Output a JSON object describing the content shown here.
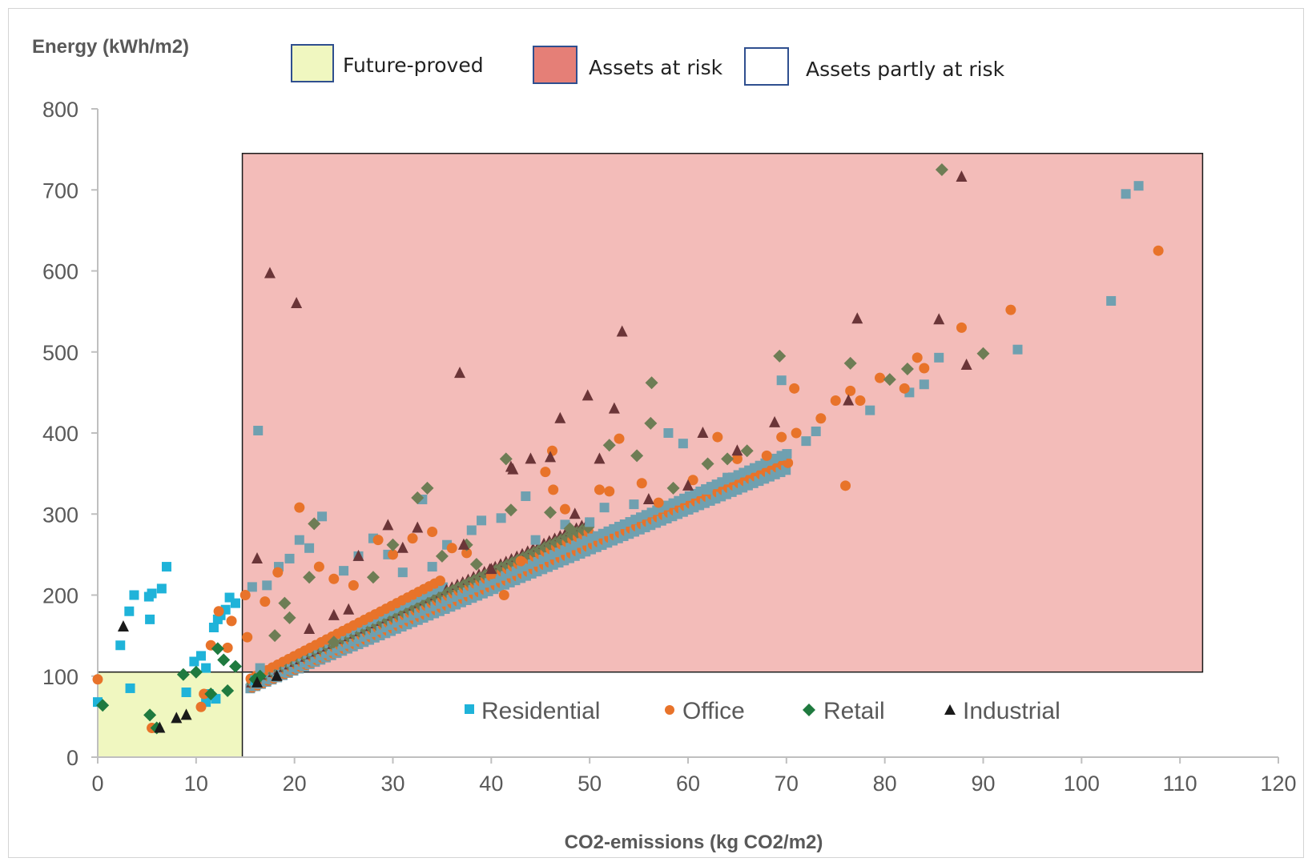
{
  "chart_data": {
    "type": "scatter",
    "title": "",
    "xlabel": "CO2-emissions (kg CO2/m2)",
    "ylabel": "Energy (kWh/m2)",
    "xlim": [
      0,
      120
    ],
    "ylim": [
      0,
      800
    ],
    "x_ticks": [
      "0",
      "10",
      "20",
      "30",
      "40",
      "50",
      "60",
      "70",
      "80",
      "90",
      "100",
      "110",
      "120"
    ],
    "y_ticks": [
      "0",
      "100",
      "200",
      "300",
      "400",
      "500",
      "600",
      "700",
      "800"
    ],
    "grid": false,
    "legend_position": "bottom-center inside plot",
    "zones": [
      {
        "name": "Future-proved",
        "color": "#f0f7c0",
        "x": [
          0,
          14.7
        ],
        "y": [
          0,
          105
        ]
      },
      {
        "name": "Assets at risk",
        "color": "#e57f77",
        "fill": "#f3bcb9",
        "x": [
          14.7,
          112.3
        ],
        "y": [
          105,
          745
        ]
      },
      {
        "name": "Assets partly at risk",
        "color": "#ffffff"
      }
    ],
    "series": [
      {
        "name": "Residential",
        "marker": "square",
        "color": "#1fb3d9",
        "overlap_color": "#6fa0b0",
        "points": [
          [
            0,
            68
          ],
          [
            2.3,
            138
          ],
          [
            3.2,
            180
          ],
          [
            3.7,
            200
          ],
          [
            5.2,
            198
          ],
          [
            5.5,
            202
          ],
          [
            5.3,
            170
          ],
          [
            6.5,
            208
          ],
          [
            7,
            235
          ],
          [
            3.3,
            85
          ],
          [
            9,
            80
          ],
          [
            9.8,
            118
          ],
          [
            10.5,
            125
          ],
          [
            11,
            110
          ],
          [
            11.3,
            78
          ],
          [
            11.8,
            160
          ],
          [
            12.2,
            170
          ],
          [
            12.5,
            175
          ],
          [
            13,
            182
          ],
          [
            13.4,
            197
          ],
          [
            14,
            190
          ],
          [
            11,
            68
          ],
          [
            12,
            72
          ],
          [
            16,
            95
          ],
          [
            16.5,
            110
          ],
          [
            16.3,
            403
          ],
          [
            15.7,
            210
          ],
          [
            17.2,
            212
          ],
          [
            18.4,
            235
          ],
          [
            19.5,
            245
          ],
          [
            20.5,
            268
          ],
          [
            21.5,
            258
          ],
          [
            22.8,
            297
          ],
          [
            25,
            230
          ],
          [
            26.5,
            248
          ],
          [
            28,
            270
          ],
          [
            29.5,
            250
          ],
          [
            31,
            228
          ],
          [
            33,
            318
          ],
          [
            34,
            235
          ],
          [
            35.5,
            262
          ],
          [
            38,
            280
          ],
          [
            39,
            292
          ],
          [
            41,
            295
          ],
          [
            43.5,
            322
          ],
          [
            44.5,
            268
          ],
          [
            47.5,
            287
          ],
          [
            50,
            290
          ],
          [
            51.5,
            308
          ],
          [
            54.5,
            312
          ],
          [
            58,
            400
          ],
          [
            59.5,
            387
          ],
          [
            62,
            330
          ],
          [
            64,
            345
          ],
          [
            69.5,
            465
          ],
          [
            69.5,
            372
          ],
          [
            72,
            390
          ],
          [
            73,
            402
          ],
          [
            78.5,
            428
          ],
          [
            82.5,
            450
          ],
          [
            84,
            460
          ],
          [
            85.5,
            493
          ],
          [
            93.5,
            503
          ],
          [
            103,
            563
          ],
          [
            104.5,
            695
          ],
          [
            105.8,
            705
          ]
        ]
      },
      {
        "name": "Office",
        "marker": "circle",
        "color": "#e8732a",
        "points": [
          [
            0,
            96
          ],
          [
            5.5,
            36
          ],
          [
            10.5,
            62
          ],
          [
            10.8,
            78
          ],
          [
            11.5,
            138
          ],
          [
            12.3,
            180
          ],
          [
            13.2,
            135
          ],
          [
            13.6,
            168
          ],
          [
            15,
            200
          ],
          [
            15.2,
            148
          ],
          [
            17,
            192
          ],
          [
            18.3,
            228
          ],
          [
            20.5,
            308
          ],
          [
            22.5,
            235
          ],
          [
            24,
            220
          ],
          [
            26,
            212
          ],
          [
            28.5,
            268
          ],
          [
            30,
            250
          ],
          [
            32,
            270
          ],
          [
            34,
            278
          ],
          [
            36,
            258
          ],
          [
            37.5,
            252
          ],
          [
            40,
            226
          ],
          [
            41.3,
            200
          ],
          [
            43,
            242
          ],
          [
            46.2,
            378
          ],
          [
            45.5,
            352
          ],
          [
            46.3,
            330
          ],
          [
            47.5,
            306
          ],
          [
            51,
            330
          ],
          [
            52,
            328
          ],
          [
            53,
            393
          ],
          [
            55.3,
            338
          ],
          [
            57,
            314
          ],
          [
            60.5,
            342
          ],
          [
            63,
            395
          ],
          [
            65,
            368
          ],
          [
            68,
            372
          ],
          [
            69.5,
            395
          ],
          [
            71,
            400
          ],
          [
            70.8,
            455
          ],
          [
            73.5,
            418
          ],
          [
            75,
            440
          ],
          [
            76.5,
            452
          ],
          [
            77.5,
            440
          ],
          [
            76,
            335
          ],
          [
            79.5,
            468
          ],
          [
            82,
            455
          ],
          [
            83.3,
            493
          ],
          [
            84,
            480
          ],
          [
            87.8,
            530
          ],
          [
            92.8,
            552
          ],
          [
            107.8,
            625
          ]
        ]
      },
      {
        "name": "Retail",
        "marker": "diamond",
        "color": "#1f7a3f",
        "overlap_color": "#6e7d55",
        "points": [
          [
            0.5,
            64
          ],
          [
            5.3,
            52
          ],
          [
            6,
            36
          ],
          [
            8.7,
            102
          ],
          [
            10,
            105
          ],
          [
            11.5,
            78
          ],
          [
            12.2,
            134
          ],
          [
            12.8,
            120
          ],
          [
            13.2,
            82
          ],
          [
            14,
            112
          ],
          [
            16,
            96
          ],
          [
            16.5,
            100
          ],
          [
            18,
            150
          ],
          [
            19,
            190
          ],
          [
            19.5,
            172
          ],
          [
            21.5,
            222
          ],
          [
            22,
            288
          ],
          [
            24,
            142
          ],
          [
            28,
            222
          ],
          [
            30,
            262
          ],
          [
            32.5,
            320
          ],
          [
            33.5,
            332
          ],
          [
            35,
            248
          ],
          [
            37.5,
            262
          ],
          [
            38.5,
            238
          ],
          [
            41.5,
            368
          ],
          [
            42,
            305
          ],
          [
            46,
            302
          ],
          [
            48,
            282
          ],
          [
            52,
            385
          ],
          [
            54.8,
            372
          ],
          [
            56.2,
            412
          ],
          [
            56.3,
            462
          ],
          [
            58.5,
            332
          ],
          [
            62,
            362
          ],
          [
            64,
            368
          ],
          [
            66,
            378
          ],
          [
            69.3,
            495
          ],
          [
            76.5,
            486
          ],
          [
            80.5,
            466
          ],
          [
            82.3,
            479
          ],
          [
            85.8,
            725
          ],
          [
            90,
            498
          ]
        ]
      },
      {
        "name": "Industrial",
        "marker": "triangle",
        "color": "#1a1a1a",
        "overlap_color": "#6b3538",
        "points": [
          [
            2.6,
            161
          ],
          [
            6.3,
            36
          ],
          [
            8,
            48
          ],
          [
            9,
            52
          ],
          [
            16.2,
            92
          ],
          [
            18.2,
            100
          ],
          [
            16.2,
            245
          ],
          [
            17.5,
            597
          ],
          [
            20.2,
            560
          ],
          [
            21.5,
            158
          ],
          [
            24,
            175
          ],
          [
            25.5,
            182
          ],
          [
            26.5,
            248
          ],
          [
            29.5,
            286
          ],
          [
            31,
            258
          ],
          [
            32.5,
            283
          ],
          [
            36.8,
            474
          ],
          [
            37.2,
            262
          ],
          [
            40,
            232
          ],
          [
            42,
            358
          ],
          [
            42.2,
            355
          ],
          [
            44,
            368
          ],
          [
            46,
            370
          ],
          [
            47,
            418
          ],
          [
            48.5,
            300
          ],
          [
            49.8,
            446
          ],
          [
            51,
            368
          ],
          [
            52.5,
            430
          ],
          [
            53.3,
            525
          ],
          [
            56,
            318
          ],
          [
            60,
            335
          ],
          [
            61.5,
            400
          ],
          [
            65,
            378
          ],
          [
            68.8,
            413
          ],
          [
            76.3,
            440
          ],
          [
            77.2,
            541
          ],
          [
            85.5,
            540
          ],
          [
            87.8,
            716
          ],
          [
            88.3,
            484
          ]
        ]
      }
    ]
  }
}
